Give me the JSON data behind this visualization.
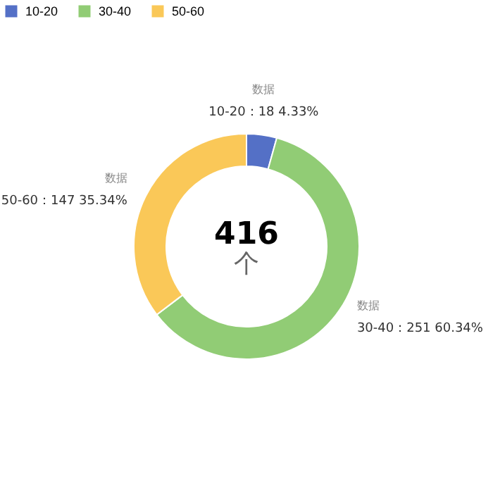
{
  "chart_data": {
    "type": "donut",
    "categories": [
      "10-20",
      "30-40",
      "50-60"
    ],
    "values": [
      18,
      251,
      147
    ],
    "colors": [
      "#5470c6",
      "#91cc75",
      "#fac858"
    ],
    "value_labels": [
      "10-20：18 4.33%",
      "30-40：251 60.34%",
      "50-60：147 35.34%"
    ],
    "annotations": [
      "数据",
      "数据",
      "数据",
      "416",
      "个"
    ],
    "legend": "top left"
  }
}
